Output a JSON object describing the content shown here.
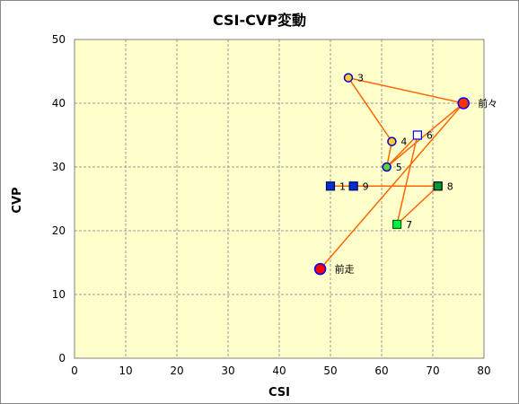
{
  "chart_data": {
    "type": "scatter",
    "title": "CSI-CVP変動",
    "xlabel": "CSI",
    "ylabel": "CVP",
    "xlim": [
      0,
      80
    ],
    "ylim": [
      0,
      50
    ],
    "x_ticks": [
      0,
      10,
      20,
      30,
      40,
      50,
      60,
      70,
      80
    ],
    "y_ticks": [
      0,
      10,
      20,
      30,
      40,
      50
    ],
    "grid": true,
    "plot_background": "#ffffcc",
    "grid_color": "#999999",
    "line_color": "#ff6600",
    "points": [
      {
        "label": "前走",
        "x": 48,
        "y": 14,
        "shape": "circle",
        "fill": "#ff0000",
        "stroke": "#0000ff"
      },
      {
        "label": "前々",
        "x": 76,
        "y": 40,
        "shape": "circle",
        "fill": "#ff3300",
        "stroke": "#0000ff"
      },
      {
        "label": "3",
        "x": 53.5,
        "y": 44,
        "shape": "circle",
        "fill": "#ffcc33",
        "stroke": "#0000cc"
      },
      {
        "label": "4",
        "x": 62,
        "y": 34,
        "shape": "circle",
        "fill": "#ffcc33",
        "stroke": "#0000cc"
      },
      {
        "label": "5",
        "x": 61,
        "y": 30,
        "shape": "circle",
        "fill": "#66cc33",
        "stroke": "#0000cc"
      },
      {
        "label": "6",
        "x": 67,
        "y": 35,
        "shape": "square",
        "fill": "#ffffff",
        "stroke": "#0000ff"
      },
      {
        "label": "7",
        "x": 63,
        "y": 21,
        "shape": "square",
        "fill": "#00ee44",
        "stroke": "#006600"
      },
      {
        "label": "8",
        "x": 71,
        "y": 27,
        "shape": "square",
        "fill": "#009933",
        "stroke": "#000000"
      },
      {
        "label": "1",
        "x": 50,
        "y": 27,
        "shape": "square",
        "fill": "#0033cc",
        "stroke": "#000066"
      },
      {
        "label": "9",
        "x": 54.5,
        "y": 27,
        "shape": "square",
        "fill": "#0033cc",
        "stroke": "#000066"
      }
    ],
    "path": [
      [
        48,
        14
      ],
      [
        76,
        40
      ],
      [
        53.5,
        44
      ],
      [
        62,
        34
      ],
      [
        61,
        30
      ],
      [
        76,
        40
      ],
      [
        61,
        30
      ],
      [
        67,
        35
      ],
      [
        63,
        21
      ],
      [
        71,
        27
      ],
      [
        50,
        27
      ]
    ]
  }
}
